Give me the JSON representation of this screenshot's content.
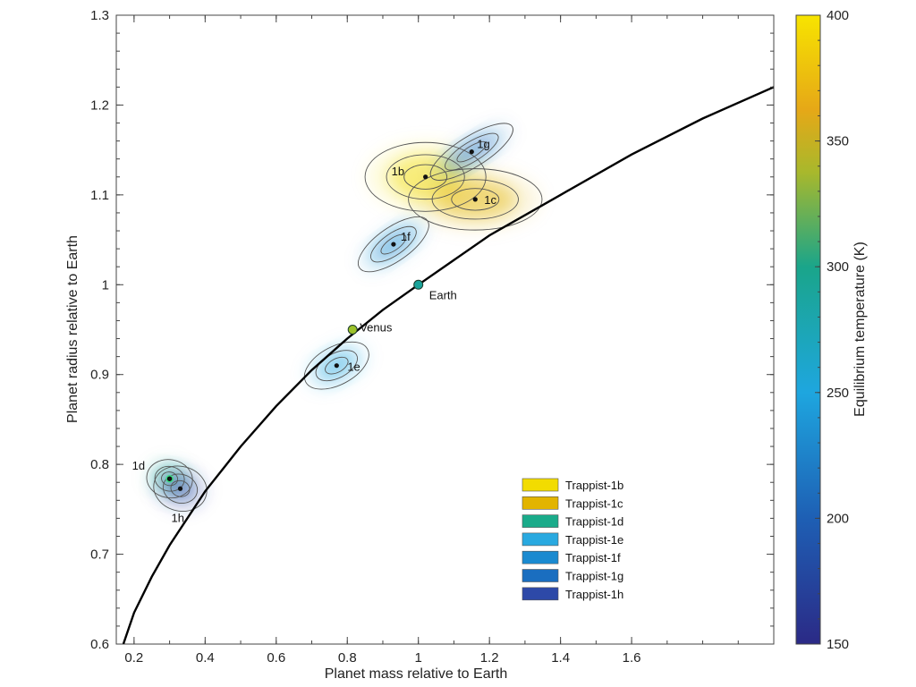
{
  "chart_data": {
    "type": "scatter",
    "title": "",
    "xlabel": "Planet mass relative to Earth",
    "ylabel": "Planet radius relative to Earth",
    "xlim": [
      0.15,
      2.0
    ],
    "ylim": [
      0.6,
      1.3
    ],
    "xticks": [
      "0.2",
      "0.4",
      "0.6",
      "0.8",
      "1",
      "1.2",
      "1.4",
      "1.6"
    ],
    "xtick_values": [
      0.2,
      0.4,
      0.6,
      0.8,
      1.0,
      1.2,
      1.4,
      1.6
    ],
    "yticks": [
      "0.6",
      "0.7",
      "0.8",
      "0.9",
      "1",
      "1.1",
      "1.2",
      "1.3"
    ],
    "ytick_values": [
      0.6,
      0.7,
      0.8,
      0.9,
      1.0,
      1.1,
      1.2,
      1.3
    ],
    "colorbar": {
      "label": "Equilibrium temperature (K)",
      "range": [
        150,
        400
      ],
      "ticks": [
        "150",
        "200",
        "250",
        "300",
        "350",
        "400"
      ],
      "tick_values": [
        150,
        200,
        250,
        300,
        350,
        400
      ]
    },
    "planets": [
      {
        "name": "Trappist-1b",
        "label": "1b",
        "mass": 1.02,
        "radius": 1.12,
        "temp": 400,
        "color": "#f2dc00",
        "spread_mass": 0.19,
        "spread_radius": 0.045,
        "angle": 0
      },
      {
        "name": "Trappist-1c",
        "label": "1c",
        "mass": 1.16,
        "radius": 1.095,
        "temp": 342,
        "color": "#e2b400",
        "spread_mass": 0.21,
        "spread_radius": 0.04,
        "angle": 0
      },
      {
        "name": "Trappist-1d",
        "label": "1d",
        "mass": 0.3,
        "radius": 0.784,
        "temp": 288,
        "color": "#1aab8a",
        "spread_mass": 0.06,
        "spread_radius": 0.03,
        "angle": 80
      },
      {
        "name": "Trappist-1e",
        "label": "1e",
        "mass": 0.77,
        "radius": 0.91,
        "temp": 251,
        "color": "#29a9e0",
        "spread_mass": 0.11,
        "spread_radius": 0.025,
        "angle": 28
      },
      {
        "name": "Trappist-1f",
        "label": "1f",
        "mass": 0.93,
        "radius": 1.045,
        "temp": 219,
        "color": "#1a8ad0",
        "spread_mass": 0.13,
        "spread_radius": 0.022,
        "angle": 35
      },
      {
        "name": "Trappist-1g",
        "label": "1g",
        "mass": 1.15,
        "radius": 1.148,
        "temp": 198,
        "color": "#1a6ec0",
        "spread_mass": 0.15,
        "spread_radius": 0.02,
        "angle": 32
      },
      {
        "name": "Trappist-1h",
        "label": "1h",
        "mass": 0.33,
        "radius": 0.773,
        "temp": 168,
        "color": "#2d49a8",
        "spread_mass": 0.07,
        "spread_radius": 0.035,
        "angle": 75
      }
    ],
    "reference_points": [
      {
        "name": "Earth",
        "mass": 1.0,
        "radius": 1.0,
        "color": "#1aa39a"
      },
      {
        "name": "Venus",
        "mass": 0.815,
        "radius": 0.95,
        "color": "#9cc22a"
      }
    ],
    "mass_radius_curve": {
      "mass": [
        0.17,
        0.2,
        0.25,
        0.3,
        0.4,
        0.5,
        0.6,
        0.7,
        0.8,
        0.9,
        1.0,
        1.2,
        1.4,
        1.6,
        1.8,
        2.0
      ],
      "radius": [
        0.6,
        0.635,
        0.675,
        0.71,
        0.77,
        0.82,
        0.865,
        0.905,
        0.94,
        0.972,
        1.0,
        1.055,
        1.1,
        1.145,
        1.185,
        1.22
      ]
    },
    "legend_position": "bottom-right"
  }
}
